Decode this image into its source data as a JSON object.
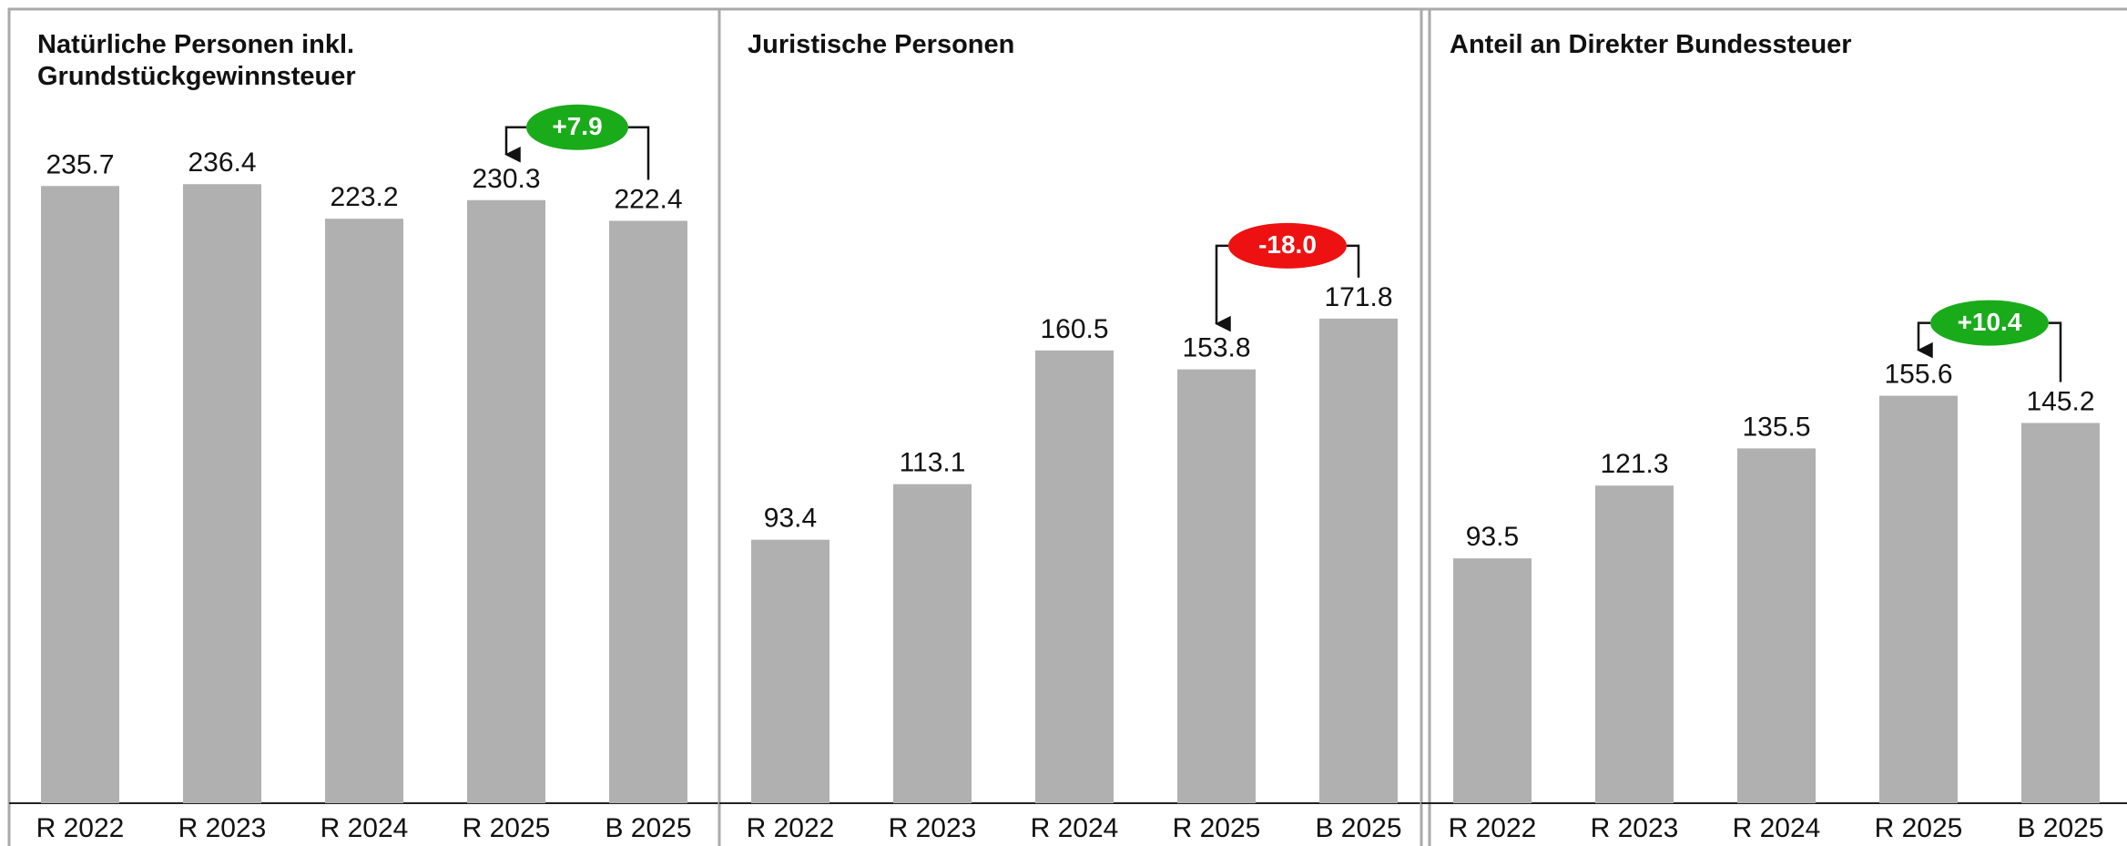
{
  "chart_data": [
    {
      "type": "bar",
      "title": [
        "Natürliche Personen inkl.",
        "Grundstückgewinnsteuer"
      ],
      "categories": [
        "R 2022",
        "R 2023",
        "R 2024",
        "R 2025",
        "B 2025"
      ],
      "values": [
        235.7,
        236.4,
        223.2,
        230.3,
        222.4
      ],
      "color": "#b0b0b0",
      "ylim": [
        0,
        265
      ],
      "annotation": "+7.9",
      "annotation_color": "#1aab1a"
    },
    {
      "type": "bar",
      "title": [
        "Juristische Personen"
      ],
      "categories": [
        "R 2022",
        "R 2023",
        "R 2024",
        "R 2025",
        "B 2025"
      ],
      "values": [
        93.4,
        113.1,
        160.5,
        153.8,
        171.8
      ],
      "color": "#b0b0b0",
      "ylim": [
        0,
        246
      ],
      "annotation": "-18.0",
      "annotation_color": "#ee1111"
    },
    {
      "type": "bar",
      "title": [
        "Anteil an Direkter Bundessteuer"
      ],
      "categories": [
        "R 2022",
        "R 2023",
        "R 2024",
        "R 2025",
        "B 2025"
      ],
      "values": [
        93.5,
        121.3,
        135.5,
        155.6,
        145.2
      ],
      "color": "#b0b0b0",
      "ylim": [
        0,
        265
      ],
      "annotation": "+10.4",
      "annotation_color": "#1aab1a"
    }
  ]
}
